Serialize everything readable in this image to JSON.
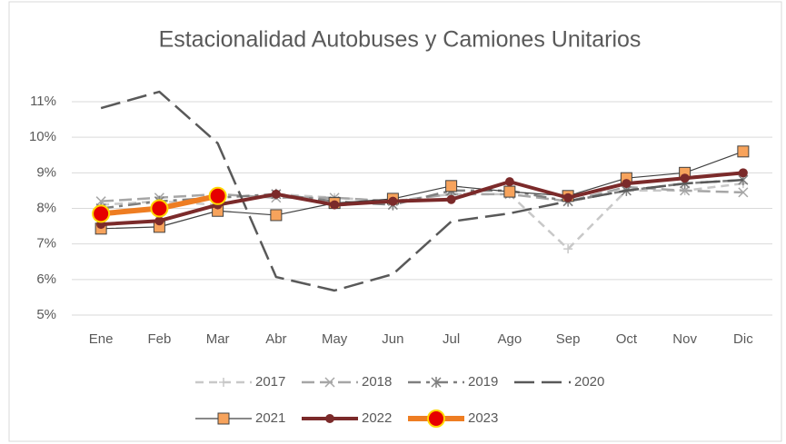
{
  "chart_data": {
    "type": "line",
    "title": "Estacionalidad Autobuses y Camiones Unitarios",
    "categories": [
      "Ene",
      "Feb",
      "Mar",
      "Abr",
      "May",
      "Jun",
      "Jul",
      "Ago",
      "Sep",
      "Oct",
      "Nov",
      "Dic"
    ],
    "series": [
      {
        "name": "2017",
        "color": "#c8c8c8",
        "dash": "9 6",
        "marker": "plus",
        "values": [
          8.1,
          8.2,
          8.1,
          8.4,
          8.3,
          8.2,
          8.4,
          8.4,
          6.86,
          8.5,
          8.5,
          8.7
        ]
      },
      {
        "name": "2018",
        "color": "#a6a6a6",
        "dash": "14 6",
        "marker": "x",
        "values": [
          8.2,
          8.3,
          8.4,
          8.3,
          8.3,
          8.2,
          8.4,
          8.4,
          8.2,
          8.6,
          8.5,
          8.45
        ]
      },
      {
        "name": "2019",
        "color": "#7f7f7f",
        "dash": "14 6 4 6",
        "marker": "star",
        "values": [
          8.0,
          8.2,
          8.3,
          8.4,
          8.2,
          8.1,
          8.5,
          8.5,
          8.2,
          8.5,
          8.7,
          8.8
        ]
      },
      {
        "name": "2020",
        "color": "#595959",
        "dash": "22 8",
        "marker": "none",
        "values": [
          10.82,
          11.28,
          9.83,
          6.07,
          5.69,
          6.15,
          7.63,
          7.86,
          8.2,
          8.5,
          8.7,
          8.8
        ]
      },
      {
        "name": "2021",
        "color": "#404040",
        "dash": "none",
        "marker": "square",
        "marker_color": "#f7a35c",
        "values": [
          7.43,
          7.48,
          7.93,
          7.81,
          8.15,
          8.27,
          8.63,
          8.47,
          8.35,
          8.85,
          9.0,
          9.6
        ]
      },
      {
        "name": "2022",
        "color": "#7b2a2a",
        "dash": "none",
        "marker": "dot",
        "marker_color": "#7b2a2a",
        "values": [
          7.55,
          7.65,
          8.1,
          8.4,
          8.1,
          8.2,
          8.25,
          8.75,
          8.3,
          8.7,
          8.85,
          9.0
        ]
      },
      {
        "name": "2023",
        "color": "#ee7d22",
        "dash": "none",
        "marker": "bigdot",
        "marker_color": "#e60000",
        "values": [
          7.85,
          8.0,
          8.35,
          null,
          null,
          null,
          null,
          null,
          null,
          null,
          null,
          null
        ]
      }
    ],
    "ylim": [
      5,
      11
    ],
    "yticks": [
      {
        "value": 5,
        "label": "5%"
      },
      {
        "value": 6,
        "label": "6%"
      },
      {
        "value": 7,
        "label": "7%"
      },
      {
        "value": 8,
        "label": "8%"
      },
      {
        "value": 9,
        "label": "9%"
      },
      {
        "value": 10,
        "label": "10%"
      },
      {
        "value": 11,
        "label": "11%"
      }
    ],
    "grid": true,
    "legend": "bottom"
  }
}
